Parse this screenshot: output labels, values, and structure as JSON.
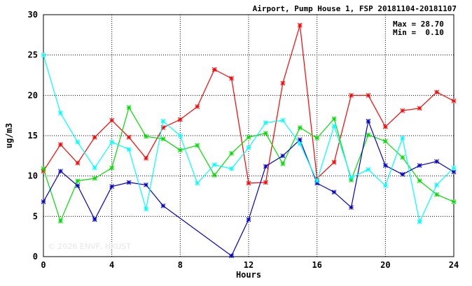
{
  "chart_data": {
    "type": "line",
    "title": "Airport, Pump House 1, FSP 20181104-20181107",
    "xlabel": "Hours",
    "ylabel": "ug/m3",
    "xlim": [
      0,
      24
    ],
    "ylim": [
      0,
      30
    ],
    "x_ticks": [
      "0",
      "4",
      "8",
      "12",
      "16",
      "20",
      "24"
    ],
    "y_ticks": [
      "0",
      "5",
      "10",
      "15",
      "20",
      "25",
      "30"
    ],
    "grid": true,
    "stats": {
      "max_label": "Max = 28.70",
      "min_label": "Min =  0.10"
    },
    "watermark": "© 2026  ENVF, HKUST",
    "series": [
      {
        "color": "#ff0000",
        "x": [
          0,
          1,
          2,
          3,
          4,
          5,
          6,
          7,
          8,
          9,
          10,
          11,
          12,
          13,
          14,
          15,
          16,
          17,
          18,
          19,
          20,
          21,
          22,
          23,
          24
        ],
        "values": [
          10.6,
          13.9,
          11.6,
          14.8,
          16.9,
          14.8,
          12.2,
          16.0,
          17.0,
          18.6,
          23.2,
          22.1,
          9.1,
          9.2,
          21.5,
          28.7,
          9.7,
          11.7,
          20.0,
          20.0,
          16.1,
          18.1,
          18.4,
          20.4,
          19.3
        ]
      },
      {
        "color": "#00dd00",
        "x": [
          0,
          1,
          2,
          3,
          4,
          5,
          6,
          7,
          8,
          9,
          10,
          11,
          12,
          13,
          14,
          15,
          16,
          17,
          18,
          19,
          20,
          21,
          22,
          23,
          24
        ],
        "values": [
          10.9,
          4.4,
          9.4,
          9.7,
          11.0,
          18.5,
          14.9,
          14.6,
          13.2,
          13.8,
          10.1,
          12.8,
          14.8,
          15.3,
          11.5,
          16.0,
          14.7,
          17.1,
          9.5,
          15.1,
          14.3,
          12.3,
          9.4,
          7.7,
          6.8
        ]
      },
      {
        "color": "#0000cc",
        "x": [
          0,
          1,
          2,
          3,
          4,
          5,
          6,
          7,
          11,
          12,
          13,
          14,
          15,
          16,
          17,
          18,
          19,
          20,
          21,
          22,
          23,
          24
        ],
        "values": [
          6.8,
          10.6,
          8.8,
          4.6,
          8.7,
          9.2,
          8.9,
          6.3,
          0.1,
          4.6,
          11.2,
          12.5,
          14.5,
          9.1,
          8.0,
          6.1,
          16.8,
          11.3,
          10.2,
          11.3,
          11.8,
          10.5
        ]
      },
      {
        "color": "#00ffff",
        "x": [
          0,
          1,
          2,
          3,
          4,
          5,
          6,
          7,
          8,
          9,
          10,
          11,
          12,
          13,
          14,
          15,
          16,
          17,
          18,
          19,
          20,
          21,
          22,
          23,
          24
        ],
        "values": [
          25.0,
          17.8,
          14.2,
          11.0,
          14.2,
          13.3,
          5.9,
          16.8,
          15.0,
          9.1,
          11.4,
          10.9,
          13.5,
          16.6,
          16.9,
          14.0,
          9.4,
          16.2,
          9.8,
          10.8,
          8.8,
          14.7,
          4.3,
          8.9,
          11.0
        ]
      }
    ]
  }
}
